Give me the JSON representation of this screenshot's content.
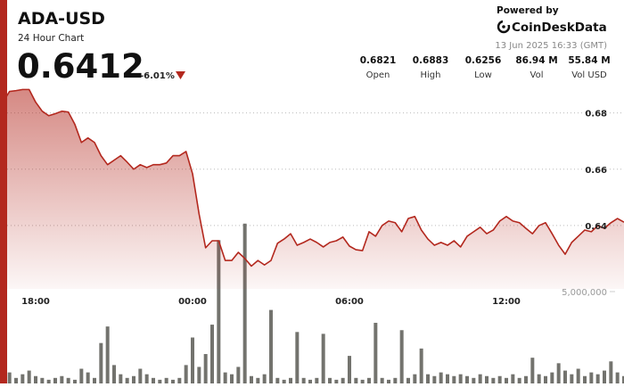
{
  "header": {
    "title": "ADA-USD",
    "subtitle": "24 Hour Chart",
    "price": "0.6412",
    "change": "-6.01%",
    "powered_by": "Powered by",
    "brand": "CoinDeskData",
    "timestamp": "13 Jun 2025 16:33 (GMT)"
  },
  "stats": [
    {
      "value": "0.6821",
      "label": "Open"
    },
    {
      "value": "0.6883",
      "label": "High"
    },
    {
      "value": "0.6256",
      "label": "Low"
    },
    {
      "value": "86.94 M",
      "label": "Vol"
    },
    {
      "value": "55.84 M",
      "label": "Vol USD"
    }
  ],
  "chart_data": {
    "type": "line",
    "categories": [
      null,
      null,
      null,
      null,
      null,
      "18:00",
      null,
      null,
      null,
      null,
      null,
      null,
      null,
      null,
      null,
      null,
      null,
      null,
      null,
      null,
      null,
      null,
      null,
      null,
      null,
      null,
      null,
      null,
      null,
      "00:00",
      null,
      null,
      null,
      null,
      null,
      null,
      null,
      null,
      null,
      null,
      null,
      null,
      null,
      null,
      null,
      null,
      null,
      null,
      null,
      null,
      null,
      null,
      null,
      "06:00",
      null,
      null,
      null,
      null,
      null,
      null,
      null,
      null,
      null,
      null,
      null,
      null,
      null,
      null,
      null,
      null,
      null,
      null,
      null,
      null,
      null,
      null,
      null,
      "12:00",
      null,
      null,
      null,
      null,
      null,
      null,
      null,
      null,
      null,
      null,
      null,
      null,
      null,
      null,
      null,
      null,
      null,
      null
    ],
    "series": [
      {
        "type": "line",
        "color": "#b3281e",
        "values": [
          0.6838,
          0.6876,
          0.6879,
          0.6883,
          0.6883,
          0.6838,
          0.6806,
          0.679,
          0.6797,
          0.6806,
          0.6803,
          0.6759,
          0.6695,
          0.6711,
          0.6695,
          0.6648,
          0.6616,
          0.6632,
          0.6648,
          0.6625,
          0.66,
          0.6616,
          0.6606,
          0.6616,
          0.6616,
          0.6622,
          0.6648,
          0.6648,
          0.6663,
          0.6584,
          0.6441,
          0.6321,
          0.6346,
          0.6346,
          0.6276,
          0.6276,
          0.6305,
          0.6283,
          0.6256,
          0.6276,
          0.626,
          0.6276,
          0.6337,
          0.6352,
          0.6371,
          0.633,
          0.634,
          0.6352,
          0.634,
          0.6324,
          0.634,
          0.6346,
          0.6359,
          0.6327,
          0.6314,
          0.6311,
          0.6378,
          0.6362,
          0.64,
          0.6416,
          0.641,
          0.6378,
          0.6425,
          0.6432,
          0.6384,
          0.6352,
          0.633,
          0.634,
          0.633,
          0.6346,
          0.6324,
          0.6362,
          0.6378,
          0.6394,
          0.6371,
          0.6384,
          0.6416,
          0.6432,
          0.6416,
          0.641,
          0.639,
          0.6371,
          0.64,
          0.641,
          0.6371,
          0.633,
          0.6298,
          0.634,
          0.6362,
          0.6384,
          0.6378,
          0.64,
          0.639,
          0.641,
          0.6425,
          0.6412
        ]
      },
      {
        "type": "bar",
        "axis": "y2",
        "color": "#5a5a55",
        "values": [
          400000,
          600000,
          300000,
          500000,
          700000,
          400000,
          300000,
          200000,
          300000,
          400000,
          300000,
          200000,
          800000,
          600000,
          300000,
          2200000,
          3100000,
          1000000,
          500000,
          300000,
          400000,
          800000,
          500000,
          300000,
          200000,
          300000,
          200000,
          300000,
          1000000,
          2500000,
          900000,
          1600000,
          3200000,
          7800000,
          600000,
          500000,
          900000,
          8700000,
          400000,
          300000,
          500000,
          4000000,
          300000,
          200000,
          300000,
          2800000,
          300000,
          200000,
          300000,
          2700000,
          300000,
          200000,
          300000,
          1500000,
          300000,
          200000,
          300000,
          3300000,
          300000,
          200000,
          300000,
          2900000,
          300000,
          500000,
          1900000,
          500000,
          400000,
          600000,
          500000,
          400000,
          500000,
          400000,
          300000,
          500000,
          400000,
          300000,
          400000,
          300000,
          500000,
          300000,
          400000,
          1400000,
          500000,
          400000,
          600000,
          1100000,
          700000,
          500000,
          800000,
          400000,
          600000,
          500000,
          700000,
          1200000,
          600000,
          400000
        ]
      }
    ],
    "ylim": [
      0.6175,
      0.69
    ],
    "yticks": [
      0.64,
      0.66,
      0.68
    ],
    "y2lim": [
      0,
      10000000
    ],
    "y2ticks": [
      {
        "value": 5000000,
        "label": "5,000,000"
      }
    ],
    "grid": true
  }
}
